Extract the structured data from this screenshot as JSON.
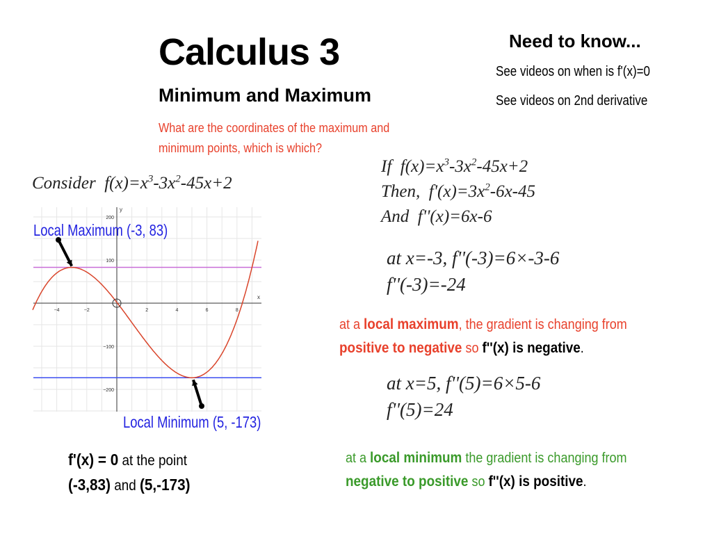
{
  "title": "Calculus 3",
  "subtitle": "Minimum and Maximum",
  "question": [
    "What are the coordinates of the maximum and",
    "minimum points, which is which?"
  ],
  "need_to_know": {
    "heading": "Need to know...",
    "items": [
      "See videos on when is f'(x)=0",
      "See videos on 2nd derivative"
    ]
  },
  "consider": {
    "prefix": "Consider",
    "f": "f(x)=x",
    "e1": "3",
    "m1": "-3x",
    "e2": "2",
    "tail": "-45x+2"
  },
  "derivation": {
    "line1": {
      "prefix": "If",
      "f": "f(x)=x",
      "e1": "3",
      "m1": "-3x",
      "e2": "2",
      "tail": "-45x+2"
    },
    "line2": {
      "prefix": "Then,",
      "f": "f'(x)=3x",
      "e1": "2",
      "tail": "-6x-45"
    },
    "line3": {
      "prefix": "And",
      "f": "f''(x)=6x-6"
    },
    "max_eval": [
      "at  x=-3,  f''(-3)=6×-3-6",
      "f''(-3)=-24"
    ],
    "min_eval": [
      "at  x=5,  f''(5)=6×5-6",
      "f''(5)=24"
    ]
  },
  "max_statement": {
    "a": "at a ",
    "b": "local maximum",
    "c": ", the gradient is changing from",
    "d": "positive to negative",
    "e": " so ",
    "f": "f''(x) is negative",
    "g": "."
  },
  "min_statement": {
    "a": "at a ",
    "b": "local minimum",
    "c": " the gradient is changing from",
    "d": "negative to positive",
    "e": " so ",
    "f": "f''(x) is positive",
    "g": "."
  },
  "fprime_note": {
    "a": "f'(x) = 0",
    "b": " at the point",
    "c": "(-3,83)",
    "d": " and ",
    "e": "(5,-173)"
  },
  "colors": {
    "red": "#e8412c",
    "green": "#3a9a2a",
    "blue": "#2323e0",
    "curve": "#d9452b",
    "max_line": "#c86dd7",
    "min_line": "#3b4ef0"
  },
  "chart_data": {
    "type": "line",
    "function": "x^3-3x^2-45x+2",
    "coefficients": [
      1,
      -3,
      -45,
      2
    ],
    "xlabel": "x",
    "ylabel": "y",
    "xlim": [
      -5.6,
      9.4
    ],
    "ylim": [
      -250,
      220
    ],
    "grid": true,
    "x_ticks": [
      -4,
      -2,
      2,
      4,
      6,
      8
    ],
    "y_ticks": [
      200,
      100,
      -100,
      -200
    ],
    "horizontal_lines": [
      83,
      -173
    ],
    "annotations": [
      {
        "text": "Local Maximum (-3, 83)",
        "x": -3,
        "y": 83
      },
      {
        "text": "Local Minimum (5, -173)",
        "x": 5,
        "y": -173
      }
    ]
  }
}
